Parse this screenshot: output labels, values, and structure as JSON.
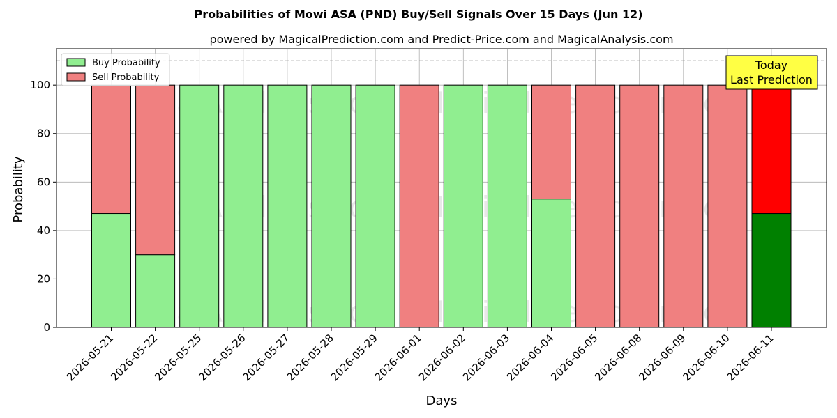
{
  "chart_data": {
    "type": "bar",
    "stacked": true,
    "title": "Probabilities of Mowi ASA (PND) Buy/Sell Signals Over 15 Days (Jun 12)",
    "subtitle": "powered by MagicalPrediction.com and Predict-Price.com and MagicalAnalysis.com",
    "xlabel": "Days",
    "ylabel": "Probability",
    "ylim": [
      0,
      115
    ],
    "yticks": [
      0,
      20,
      40,
      60,
      80,
      100
    ],
    "grid": true,
    "legend_position": "top-left",
    "categories": [
      "2026-05-21",
      "2026-05-22",
      "2026-05-25",
      "2026-05-26",
      "2026-05-27",
      "2026-05-28",
      "2026-05-29",
      "2026-06-01",
      "2026-06-02",
      "2026-06-03",
      "2026-06-04",
      "2026-06-05",
      "2026-06-08",
      "2026-06-09",
      "2026-06-10",
      "2026-06-11"
    ],
    "series": [
      {
        "name": "Buy Probability",
        "color": "#90ee90",
        "values": [
          47,
          30,
          100,
          100,
          100,
          100,
          100,
          0,
          100,
          100,
          53,
          0,
          0,
          0,
          0,
          47
        ]
      },
      {
        "name": "Sell Probability",
        "color": "#f08080",
        "values": [
          53,
          70,
          0,
          0,
          0,
          0,
          0,
          100,
          0,
          0,
          47,
          100,
          100,
          100,
          100,
          53
        ]
      }
    ],
    "highlight": {
      "index": 15,
      "buy_color": "#008000",
      "sell_color": "#ff0000"
    },
    "reference_line": 110,
    "annotation": {
      "lines": [
        "Today",
        "Last Prediction"
      ],
      "background": "#ffff44"
    },
    "watermarks": [
      "MagicalAnalysis.com",
      "MagicalPrediction.com"
    ]
  }
}
